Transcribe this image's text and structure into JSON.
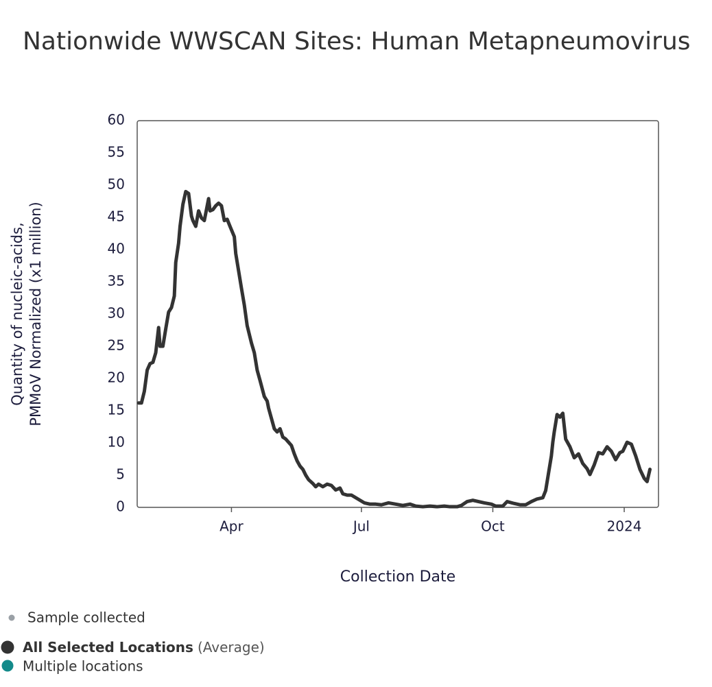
{
  "chart_data": {
    "type": "line",
    "title": "Nationwide WWSCAN Sites: Human Metapneumovirus",
    "x_label": "Collection Date",
    "y_label": [
      "Quantity of nucleic-acids,",
      "PMMoV Normalized (x1 million)"
    ],
    "xlim": [
      "2023-01-25",
      "2024-01-25"
    ],
    "xticks": [
      {
        "value": "2023-04-01",
        "label": "Apr"
      },
      {
        "value": "2023-07-01",
        "label": "Jul"
      },
      {
        "value": "2023-10-01",
        "label": "Oct"
      },
      {
        "value": "2024-01-01",
        "label": "2024"
      }
    ],
    "ylim": [
      0,
      60
    ],
    "yticks": [
      0,
      5,
      10,
      15,
      20,
      25,
      30,
      35,
      40,
      45,
      50,
      55,
      60
    ],
    "grid": false,
    "x": [
      "2023-01-26",
      "2023-01-28",
      "2023-01-30",
      "2023-02-01",
      "2023-02-03",
      "2023-02-05",
      "2023-02-07",
      "2023-02-09",
      "2023-02-10",
      "2023-02-12",
      "2023-02-14",
      "2023-02-16",
      "2023-02-18",
      "2023-02-20",
      "2023-02-21",
      "2023-02-23",
      "2023-02-24",
      "2023-02-26",
      "2023-02-28",
      "2023-03-02",
      "2023-03-04",
      "2023-03-05",
      "2023-03-07",
      "2023-03-09",
      "2023-03-11",
      "2023-03-13",
      "2023-03-16",
      "2023-03-17",
      "2023-03-19",
      "2023-03-21",
      "2023-03-23",
      "2023-03-25",
      "2023-03-27",
      "2023-03-29",
      "2023-03-31",
      "2023-04-03",
      "2023-04-04",
      "2023-04-06",
      "2023-04-08",
      "2023-04-10",
      "2023-04-12",
      "2023-04-15",
      "2023-04-17",
      "2023-04-19",
      "2023-04-21",
      "2023-04-24",
      "2023-04-26",
      "2023-04-27",
      "2023-04-29",
      "2023-05-01",
      "2023-05-03",
      "2023-05-05",
      "2023-05-07",
      "2023-05-09",
      "2023-05-11",
      "2023-05-13",
      "2023-05-15",
      "2023-05-17",
      "2023-05-19",
      "2023-05-21",
      "2023-05-23",
      "2023-05-25",
      "2023-05-28",
      "2023-05-30",
      "2023-06-01",
      "2023-06-04",
      "2023-06-07",
      "2023-06-10",
      "2023-06-13",
      "2023-06-16",
      "2023-06-18",
      "2023-06-21",
      "2023-06-24",
      "2023-06-27",
      "2023-06-30",
      "2023-07-03",
      "2023-07-07",
      "2023-07-11",
      "2023-07-15",
      "2023-07-20",
      "2023-07-25",
      "2023-07-30",
      "2023-08-04",
      "2023-08-08",
      "2023-08-13",
      "2023-08-18",
      "2023-08-23",
      "2023-08-28",
      "2023-09-01",
      "2023-09-06",
      "2023-09-09",
      "2023-09-13",
      "2023-09-17",
      "2023-09-21",
      "2023-09-25",
      "2023-09-30",
      "2023-10-03",
      "2023-10-08",
      "2023-10-11",
      "2023-10-16",
      "2023-10-20",
      "2023-10-24",
      "2023-10-28",
      "2023-11-01",
      "2023-11-05",
      "2023-11-07",
      "2023-11-09",
      "2023-11-11",
      "2023-11-12",
      "2023-11-13",
      "2023-11-15",
      "2023-11-17",
      "2023-11-19",
      "2023-11-21",
      "2023-11-24",
      "2023-11-27",
      "2023-11-30",
      "2023-12-03",
      "2023-12-06",
      "2023-12-08",
      "2023-12-11",
      "2023-12-14",
      "2023-12-17",
      "2023-12-20",
      "2023-12-23",
      "2023-12-26",
      "2023-12-29",
      "2023-12-31",
      "2024-01-03",
      "2024-01-06",
      "2024-01-09",
      "2024-01-12",
      "2024-01-15",
      "2024-01-17",
      "2024-01-19"
    ],
    "series": [
      {
        "name": "All Selected Locations",
        "name_note": "(Average)",
        "color": "#333333",
        "values": [
          16.2,
          16.2,
          18,
          21.3,
          22.3,
          22.5,
          24,
          27.9,
          25,
          25,
          27.7,
          30.3,
          31,
          32.8,
          38,
          41,
          43.6,
          47,
          49,
          48.7,
          45.2,
          44.5,
          43.6,
          46,
          44.9,
          44.5,
          47.9,
          46,
          46.2,
          46.8,
          47.2,
          46.8,
          44.5,
          44.7,
          43.6,
          42,
          39.4,
          36.7,
          34,
          31.4,
          28.2,
          25.5,
          24,
          21.3,
          19.7,
          17.2,
          16.5,
          15.4,
          13.8,
          12.2,
          11.7,
          12.2,
          10.9,
          10.6,
          10.1,
          9.6,
          8.3,
          7.2,
          6.4,
          5.9,
          5,
          4.3,
          3.7,
          3.2,
          3.6,
          3.2,
          3.6,
          3.4,
          2.7,
          3,
          2.1,
          1.9,
          1.9,
          1.5,
          1.1,
          0.7,
          0.5,
          0.5,
          0.4,
          0.7,
          0.5,
          0.3,
          0.5,
          0.2,
          0.1,
          0.2,
          0.1,
          0.2,
          0.1,
          0.1,
          0.3,
          0.9,
          1.1,
          0.9,
          0.7,
          0.5,
          0.2,
          0.2,
          0.9,
          0.6,
          0.4,
          0.4,
          0.9,
          1.3,
          1.5,
          2.6,
          5.3,
          8,
          10.1,
          11.7,
          14.4,
          14,
          14.6,
          10.6,
          9.4,
          7.7,
          8.3,
          6.8,
          6,
          5.1,
          6.6,
          8.5,
          8.3,
          9.4,
          8.7,
          7.4,
          8.5,
          8.7,
          10.1,
          9.8,
          8,
          5.9,
          4.5,
          4,
          5.9
        ]
      }
    ],
    "legend_items": [
      {
        "label": "Sample collected",
        "color": "#9aa0a6"
      },
      {
        "label": "Multiple locations",
        "color": "#138a8a"
      }
    ]
  }
}
